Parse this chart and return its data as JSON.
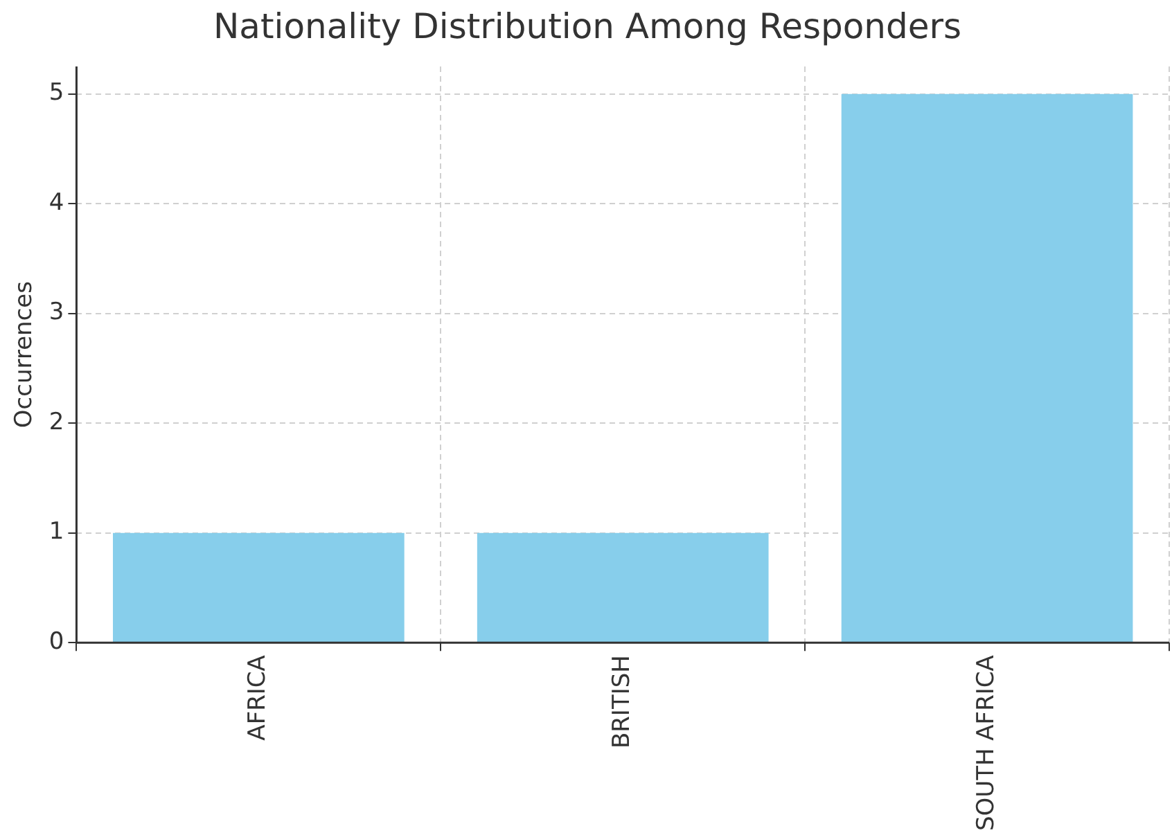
{
  "chart_data": {
    "type": "bar",
    "title": "Nationality Distribution Among Responders",
    "ylabel": "Occurrences",
    "categories": [
      "AFRICA",
      "BRITISH",
      "SOUTH AFRICA"
    ],
    "values": [
      1,
      1,
      5
    ],
    "color": "#87ceeb",
    "ylim": [
      0,
      5.25
    ],
    "yticks": [
      0,
      1,
      2,
      3,
      4,
      5
    ],
    "grid": true,
    "legend": false
  }
}
